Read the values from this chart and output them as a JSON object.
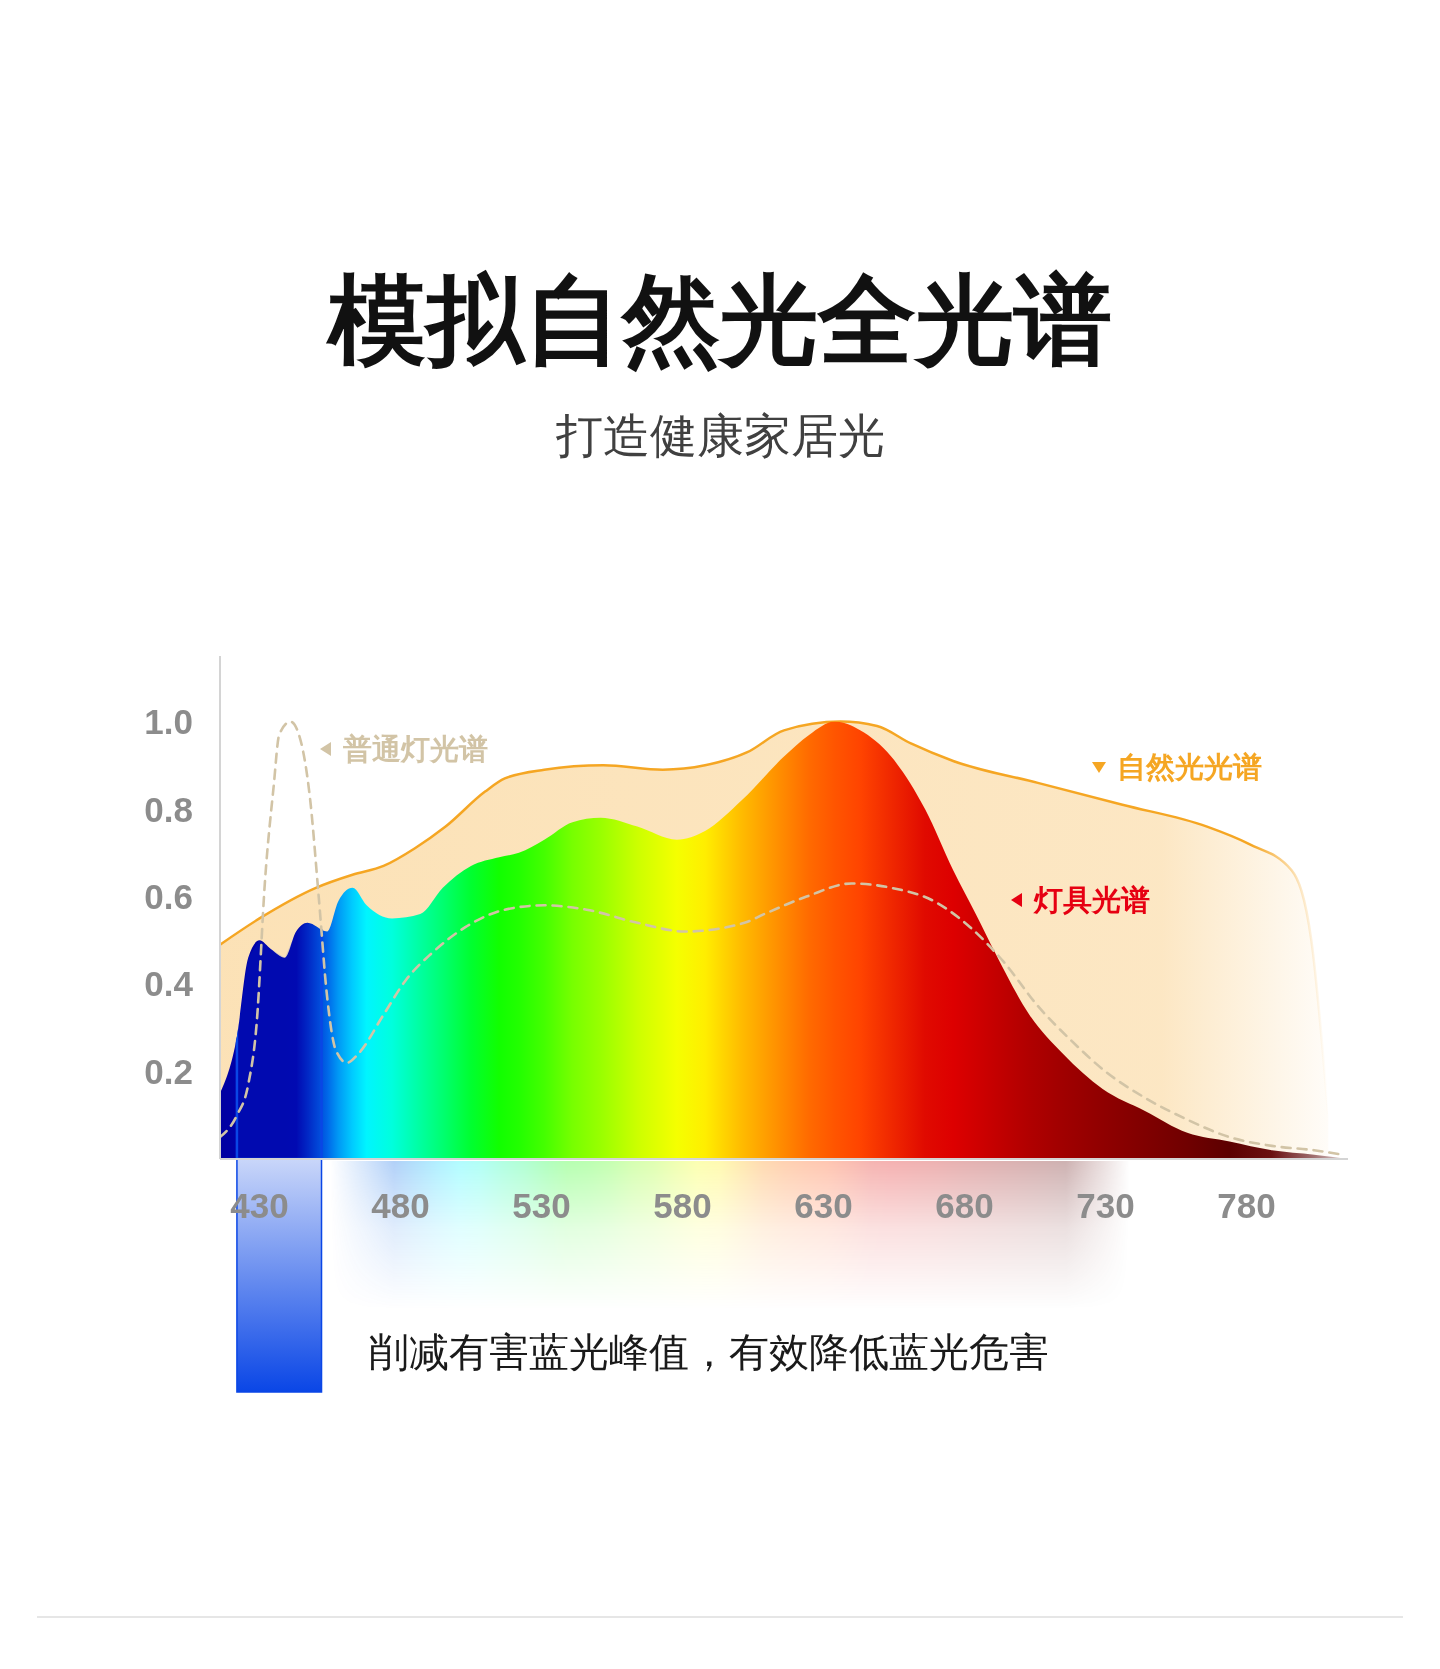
{
  "chart_data": {
    "type": "area",
    "title": "模拟自然光全光谱",
    "subtitle": "打造健康家居光",
    "legend": "top",
    "annotations": [
      "削减有害蓝光峰值，有效降低蓝光危害"
    ],
    "xlim": [
      416,
      816
    ],
    "xticks": [
      430,
      480,
      530,
      580,
      630,
      680,
      730,
      780
    ],
    "ylim": [
      0,
      1.15
    ],
    "yticks": [
      0.2,
      0.4,
      0.6,
      0.8,
      {
        "value": 1,
        "label": "1.0"
      }
    ],
    "bands": [
      {
        "axis": "x",
        "from": 422,
        "to": 452,
        "color": "#0a46e6"
      }
    ],
    "series": [
      {
        "name": "自然光光谱",
        "color": "#f5a623",
        "x": [
          416,
          430,
          450,
          463,
          474,
          485,
          496,
          510,
          517,
          531,
          552,
          573,
          588,
          603,
          616,
          636,
          649,
          661,
          676,
          706,
          736,
          766,
          781,
          796,
          803,
          809
        ],
        "values": [
          0.49,
          0.55,
          0.62,
          0.65,
          0.67,
          0.71,
          0.76,
          0.84,
          0.87,
          0.89,
          0.9,
          0.89,
          0.9,
          0.93,
          0.98,
          1.0,
          0.99,
          0.95,
          0.91,
          0.86,
          0.81,
          0.76,
          0.72,
          0.66,
          0.5,
          0.1
        ]
      },
      {
        "name": "灯具光谱",
        "color": "#e60012",
        "x": [
          416,
          422,
          426,
          430,
          434,
          439,
          443,
          447,
          454,
          458,
          463,
          468,
          477,
          487,
          495,
          505,
          515,
          522,
          531,
          541,
          551,
          564,
          578,
          588,
          601,
          616,
          625,
          634,
          643,
          654,
          666,
          676,
          684,
          691,
          703,
          715,
          729,
          744,
          759,
          774,
          789,
          804,
          816
        ],
        "values": [
          0.15,
          0.28,
          0.46,
          0.5,
          0.48,
          0.46,
          0.52,
          0.54,
          0.52,
          0.59,
          0.62,
          0.58,
          0.55,
          0.56,
          0.62,
          0.67,
          0.69,
          0.7,
          0.73,
          0.77,
          0.78,
          0.76,
          0.73,
          0.75,
          0.82,
          0.92,
          0.97,
          1.0,
          0.98,
          0.92,
          0.8,
          0.66,
          0.56,
          0.47,
          0.33,
          0.24,
          0.16,
          0.11,
          0.06,
          0.04,
          0.02,
          0.01,
          0.0
        ],
        "colors": [
          "#0000a0",
          "#0000a8",
          "#0000a8",
          "#0000a8",
          "#0000a8",
          "#0000a8",
          "#0000aa",
          "#0022c0",
          "#0066e8",
          "#0099f5",
          "#00ccff",
          "#00f5ff",
          "#00ffdd",
          "#00ffa0",
          "#00ff70",
          "#00ff30",
          "#11ff00",
          "#22ff00",
          "#44ff00",
          "#77ff00",
          "#99ff00",
          "#ccff00",
          "#f5ff00",
          "#ffee00",
          "#ffbb00",
          "#ff8800",
          "#ff6a00",
          "#ff5500",
          "#ff4400",
          "#f02800",
          "#e00a00",
          "#dd0000",
          "#d00000",
          "#c40000",
          "#b00000",
          "#a00000",
          "#900000",
          "#800000",
          "#700000",
          "#5c0000",
          "#6a1010",
          "#a07070",
          "#e8dcdc"
        ]
      },
      {
        "name": "普通灯光谱",
        "type": "line",
        "color": "#d2c4a6",
        "line_style": "dashed",
        "x": [
          416,
          422,
          426,
          429,
          432,
          435,
          437,
          441,
          444,
          448,
          451,
          454,
          457,
          461,
          465,
          474,
          482,
          491,
          503,
          517,
          531,
          546,
          564,
          581,
          602,
          609,
          624,
          640,
          654,
          669,
          682,
          694,
          706,
          718,
          730,
          744,
          759,
          774,
          789,
          804,
          814
        ],
        "values": [
          0.05,
          0.1,
          0.17,
          0.31,
          0.64,
          0.85,
          0.97,
          1.0,
          0.97,
          0.82,
          0.6,
          0.37,
          0.25,
          0.22,
          0.24,
          0.33,
          0.41,
          0.47,
          0.53,
          0.57,
          0.58,
          0.57,
          0.54,
          0.52,
          0.54,
          0.56,
          0.6,
          0.63,
          0.62,
          0.59,
          0.53,
          0.45,
          0.35,
          0.27,
          0.2,
          0.14,
          0.09,
          0.05,
          0.03,
          0.02,
          0.01
        ]
      }
    ]
  }
}
